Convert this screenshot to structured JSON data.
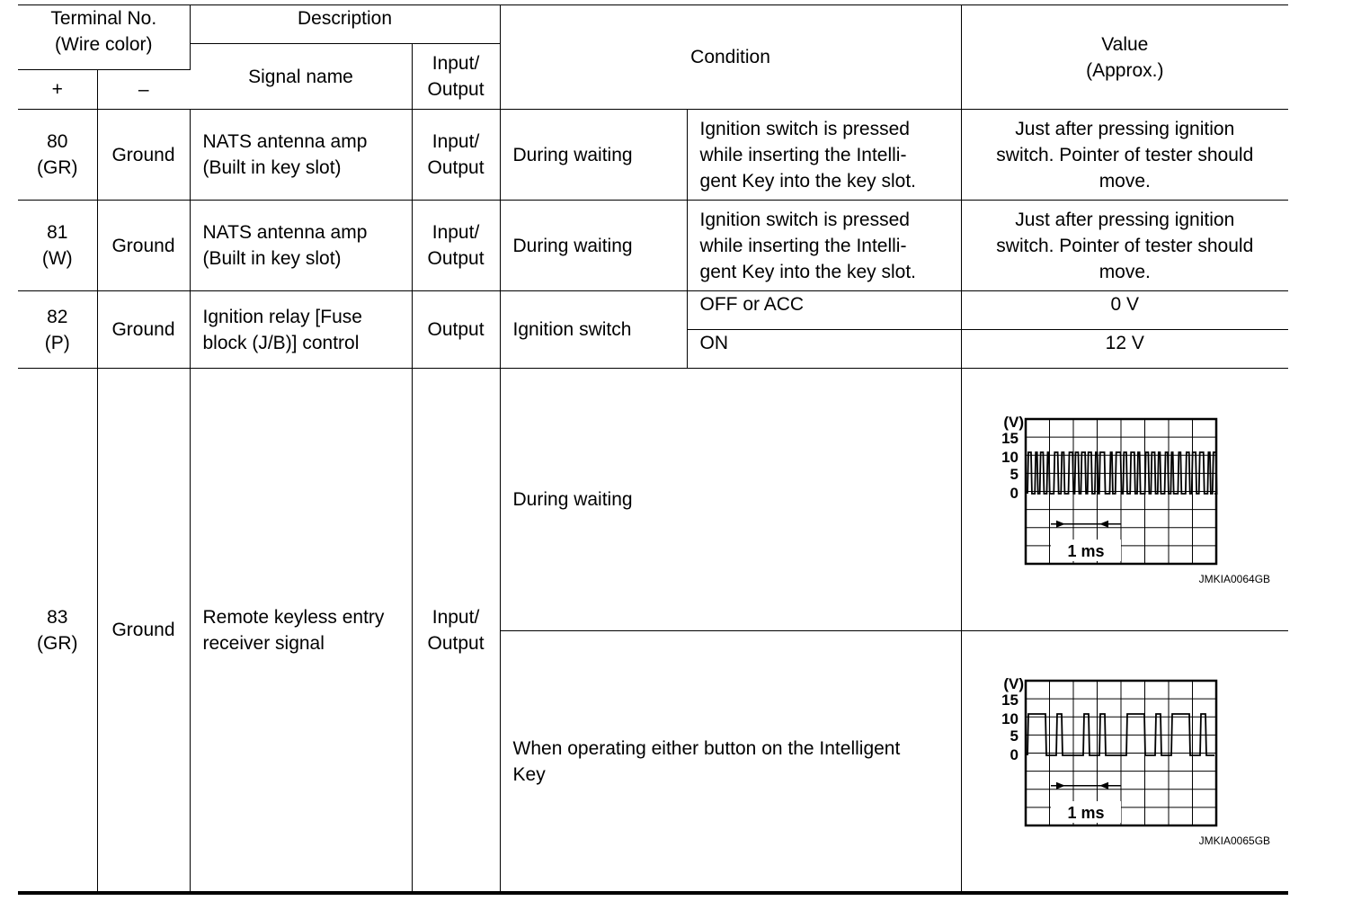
{
  "header": {
    "terminal": "Terminal No.\n(Wire color)",
    "plus": "+",
    "minus": "–",
    "description": "Description",
    "signal_name": "Signal name",
    "io": "Input/\nOutput",
    "condition": "Condition",
    "value": "Value\n(Approx.)"
  },
  "rows": [
    {
      "terminal": "80\n(GR)",
      "ground": "Ground",
      "signal": "NATS antenna amp\n(Built in key slot)",
      "io": "Input/\nOutput",
      "condition": "During waiting",
      "sub": "Ignition switch is pressed\nwhile inserting the Intelli-\ngent Key into the key slot.",
      "value": "Just after pressing ignition\nswitch. Pointer of tester should\nmove."
    },
    {
      "terminal": "81\n(W)",
      "ground": "Ground",
      "signal": "NATS antenna amp\n(Built in key slot)",
      "io": "Input/\nOutput",
      "condition": "During waiting",
      "sub": "Ignition switch is pressed\nwhile inserting the Intelli-\ngent Key into the key slot.",
      "value": "Just after pressing ignition\nswitch. Pointer of tester should\nmove."
    },
    {
      "terminal": "82\n(P)",
      "ground": "Ground",
      "signal": "Ignition relay [Fuse\nblock (J/B)] control",
      "io": "Output",
      "condition": "Ignition switch",
      "sub1": "OFF or ACC",
      "value1": "0 V",
      "sub2": "ON",
      "value2": "12 V"
    },
    {
      "terminal": "83\n(GR)",
      "ground": "Ground",
      "signal": "Remote keyless entry\nreceiver signal",
      "io": "Input/\nOutput",
      "condition1": "During waiting",
      "condition2": "When operating either button on the Intelligent\nKey"
    }
  ],
  "waveforms": [
    {
      "unit": "(V)",
      "ticks": [
        "15",
        "10",
        "5",
        "0"
      ],
      "time_label": "1 ms",
      "code": "JMKIA0064GB",
      "pattern": "irregular"
    },
    {
      "unit": "(V)",
      "ticks": [
        "15",
        "10",
        "5",
        "0"
      ],
      "time_label": "1 ms",
      "code": "JMKIA0065GB",
      "pattern": "pulse-train"
    }
  ]
}
